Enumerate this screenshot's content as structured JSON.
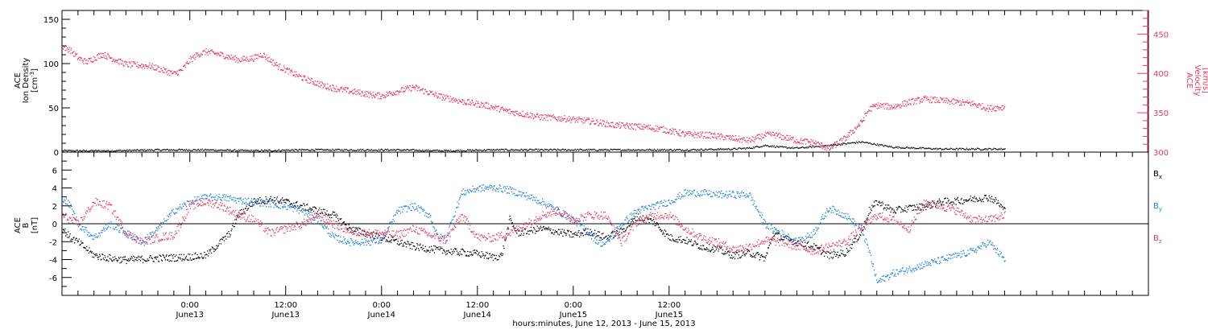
{
  "chart_data": [
    {
      "type": "scatter",
      "panel": "top",
      "ylabel_left_lines": [
        "ACE",
        "Ion Density"
      ],
      "ylabel_left_unit_base": "[cm",
      "ylabel_left_unit_sup": "-3",
      "ylabel_left_unit_end": "]",
      "ylabel_right_lines": [
        "ACE",
        "Velocity"
      ],
      "ylabel_right_unit": "[km/s]",
      "ylim_left": [
        0,
        160
      ],
      "ylim_right": [
        300,
        480
      ],
      "yticks_left": [
        "0",
        "50",
        "100",
        "150"
      ],
      "yticks_right": [
        "300",
        "350",
        "400",
        "450"
      ],
      "colors": {
        "density": "#000000",
        "velocity": "#e8385f"
      },
      "series": [
        {
          "axis": "left",
          "x": [
            0,
            6,
            12,
            18,
            24,
            30,
            36,
            42,
            48,
            54,
            60,
            66,
            72,
            78,
            84,
            86,
            88,
            90,
            92,
            96,
            100,
            104,
            110,
            116,
            118
          ],
          "values": [
            2,
            2,
            3,
            3,
            2,
            3,
            3,
            3,
            2,
            3,
            3,
            3,
            3,
            3,
            4,
            5,
            8,
            6,
            5,
            8,
            12,
            6,
            4,
            4,
            4
          ]
        },
        {
          "axis": "right",
          "x": [
            0,
            1,
            2,
            3,
            5,
            8,
            11,
            14,
            15,
            16,
            17,
            18,
            20,
            22,
            24,
            25,
            27,
            30,
            33,
            36,
            39,
            40,
            42,
            44,
            47,
            50,
            53,
            56,
            60,
            63,
            66,
            69,
            72,
            75,
            78,
            81,
            84,
            86,
            88,
            89,
            90,
            91,
            92,
            94,
            96,
            98,
            100,
            101,
            102,
            104,
            106,
            108,
            110,
            112,
            114,
            116,
            118
          ],
          "values": [
            435,
            430,
            420,
            415,
            425,
            412,
            410,
            400,
            405,
            418,
            425,
            428,
            424,
            418,
            420,
            425,
            410,
            395,
            384,
            378,
            373,
            372,
            378,
            383,
            372,
            365,
            360,
            352,
            345,
            343,
            340,
            335,
            333,
            330,
            323,
            322,
            318,
            315,
            322,
            323,
            320,
            318,
            315,
            313,
            305,
            318,
            338,
            355,
            360,
            358,
            364,
            368,
            366,
            364,
            362,
            356,
            358
          ]
        }
      ]
    },
    {
      "type": "scatter",
      "panel": "bottom",
      "ylabel_lines": [
        "ACE",
        "B"
      ],
      "ylabel_unit": "[nT]",
      "ylim": [
        -8,
        8
      ],
      "yticks": [
        "-6",
        "-4",
        "-2",
        "0",
        "2",
        "4",
        "6"
      ],
      "series": [
        {
          "name": "B",
          "name_sub": "x",
          "color": "#000000",
          "x": [
            0,
            1,
            2,
            4,
            6,
            8,
            12,
            15,
            18,
            21,
            22,
            24,
            26,
            28,
            30,
            32,
            34,
            36,
            40,
            44,
            48,
            52,
            54,
            55,
            56,
            57,
            60,
            64,
            66,
            68,
            70,
            72,
            74,
            76,
            78,
            80,
            82,
            84,
            86,
            88,
            89,
            90,
            92,
            94,
            96,
            98,
            100,
            101,
            102,
            104,
            106,
            108,
            110,
            112,
            114,
            116,
            117,
            118
          ],
          "values": [
            -0.5,
            -1.5,
            -2,
            -3.5,
            -3.8,
            -4,
            -3.8,
            -3.7,
            -3.5,
            -1,
            1,
            2.5,
            2.8,
            2.5,
            2,
            1.5,
            1,
            -0.5,
            -1.5,
            -2.5,
            -3,
            -3.3,
            -3.7,
            -3.5,
            0.5,
            -1,
            -0.5,
            -1.2,
            -0.8,
            -1.5,
            -0.8,
            0.8,
            0.3,
            -1.5,
            -1.8,
            -2.5,
            -2.8,
            -3.5,
            -3.2,
            -3.8,
            -1,
            -1.5,
            -2,
            -2.5,
            -3.5,
            -3.2,
            -1,
            1.5,
            2.5,
            1.5,
            1.8,
            2,
            2.5,
            2.6,
            2.8,
            3,
            2.5,
            1.5
          ]
        },
        {
          "name": "B",
          "name_sub": "y",
          "color": "#1f7fdf",
          "x": [
            0,
            1,
            2,
            4,
            6,
            8,
            10,
            12,
            14,
            16,
            18,
            20,
            22,
            24,
            26,
            28,
            30,
            32,
            34,
            36,
            38,
            40,
            42,
            44,
            46,
            47,
            48,
            50,
            52,
            54,
            56,
            58,
            60,
            62,
            64,
            66,
            67,
            68,
            70,
            72,
            74,
            76,
            78,
            80,
            82,
            84,
            86,
            88,
            90,
            92,
            94,
            96,
            98,
            100,
            101,
            102,
            104,
            106,
            108,
            110,
            112,
            114,
            116,
            118
          ],
          "values": [
            3,
            2,
            0,
            -1.5,
            0,
            -1,
            -2,
            -0.5,
            1.5,
            2.5,
            3,
            3,
            2.7,
            2.5,
            2.3,
            2,
            1.5,
            0.5,
            -1.5,
            -2,
            -2,
            -1.8,
            1.5,
            2,
            1,
            -1.5,
            -1.5,
            3.5,
            4,
            4.1,
            3.8,
            3.2,
            2.5,
            1.5,
            0.5,
            -1,
            -2,
            -2.2,
            0,
            1.5,
            2,
            2.5,
            3.5,
            3.5,
            3.3,
            3.3,
            3.3,
            0,
            -1,
            -2,
            -1,
            1.8,
            1,
            -0.5,
            -3,
            -6.5,
            -5.5,
            -5,
            -4.5,
            -4,
            -3.5,
            -3,
            -2,
            -4
          ]
        },
        {
          "name": "B",
          "name_sub": "z",
          "color": "#e8385f",
          "x": [
            0,
            1,
            2,
            4,
            6,
            8,
            10,
            12,
            14,
            16,
            18,
            20,
            22,
            24,
            26,
            28,
            30,
            32,
            34,
            36,
            38,
            40,
            42,
            44,
            46,
            48,
            50,
            52,
            54,
            56,
            58,
            60,
            62,
            64,
            66,
            68,
            70,
            72,
            74,
            76,
            78,
            80,
            82,
            84,
            86,
            88,
            90,
            92,
            94,
            96,
            98,
            100,
            102,
            104,
            106,
            108,
            110,
            112,
            114,
            116,
            118
          ],
          "values": [
            1,
            0.5,
            0,
            2.5,
            2,
            -1,
            -2,
            -1.5,
            -1.2,
            2,
            2.5,
            2,
            1,
            0.5,
            -1,
            -0.5,
            0,
            1,
            0,
            -0.8,
            -1,
            -1,
            -1.2,
            -0.5,
            -1.2,
            -1.8,
            1,
            -1.5,
            -1.5,
            -1,
            0,
            1,
            1.5,
            0.5,
            1,
            1,
            -2,
            0.3,
            1,
            1,
            -0.5,
            -1.5,
            -2,
            -2.8,
            -2.5,
            -1.8,
            -2,
            -2.5,
            -3,
            -2.5,
            -2,
            -0.5,
            1,
            0.5,
            -0.5,
            2.5,
            2,
            1.5,
            0.5,
            0.5,
            1
          ]
        }
      ],
      "legend_placement": "right"
    }
  ],
  "x_axis": {
    "range_hours": [
      0,
      136
    ],
    "major_ticks": [
      {
        "hours": 16,
        "time": "0:00",
        "date": "June13"
      },
      {
        "hours": 28,
        "time": "12:00",
        "date": "June13"
      },
      {
        "hours": 40,
        "time": "0:00",
        "date": "June14"
      },
      {
        "hours": 52,
        "time": "12:00",
        "date": "June14"
      },
      {
        "hours": 64,
        "time": "0:00",
        "date": "June15"
      },
      {
        "hours": 76,
        "time": "12:00",
        "date": "June15"
      }
    ],
    "xlabel": "hours:minutes, June 12, 2013 - June 15, 2013"
  }
}
